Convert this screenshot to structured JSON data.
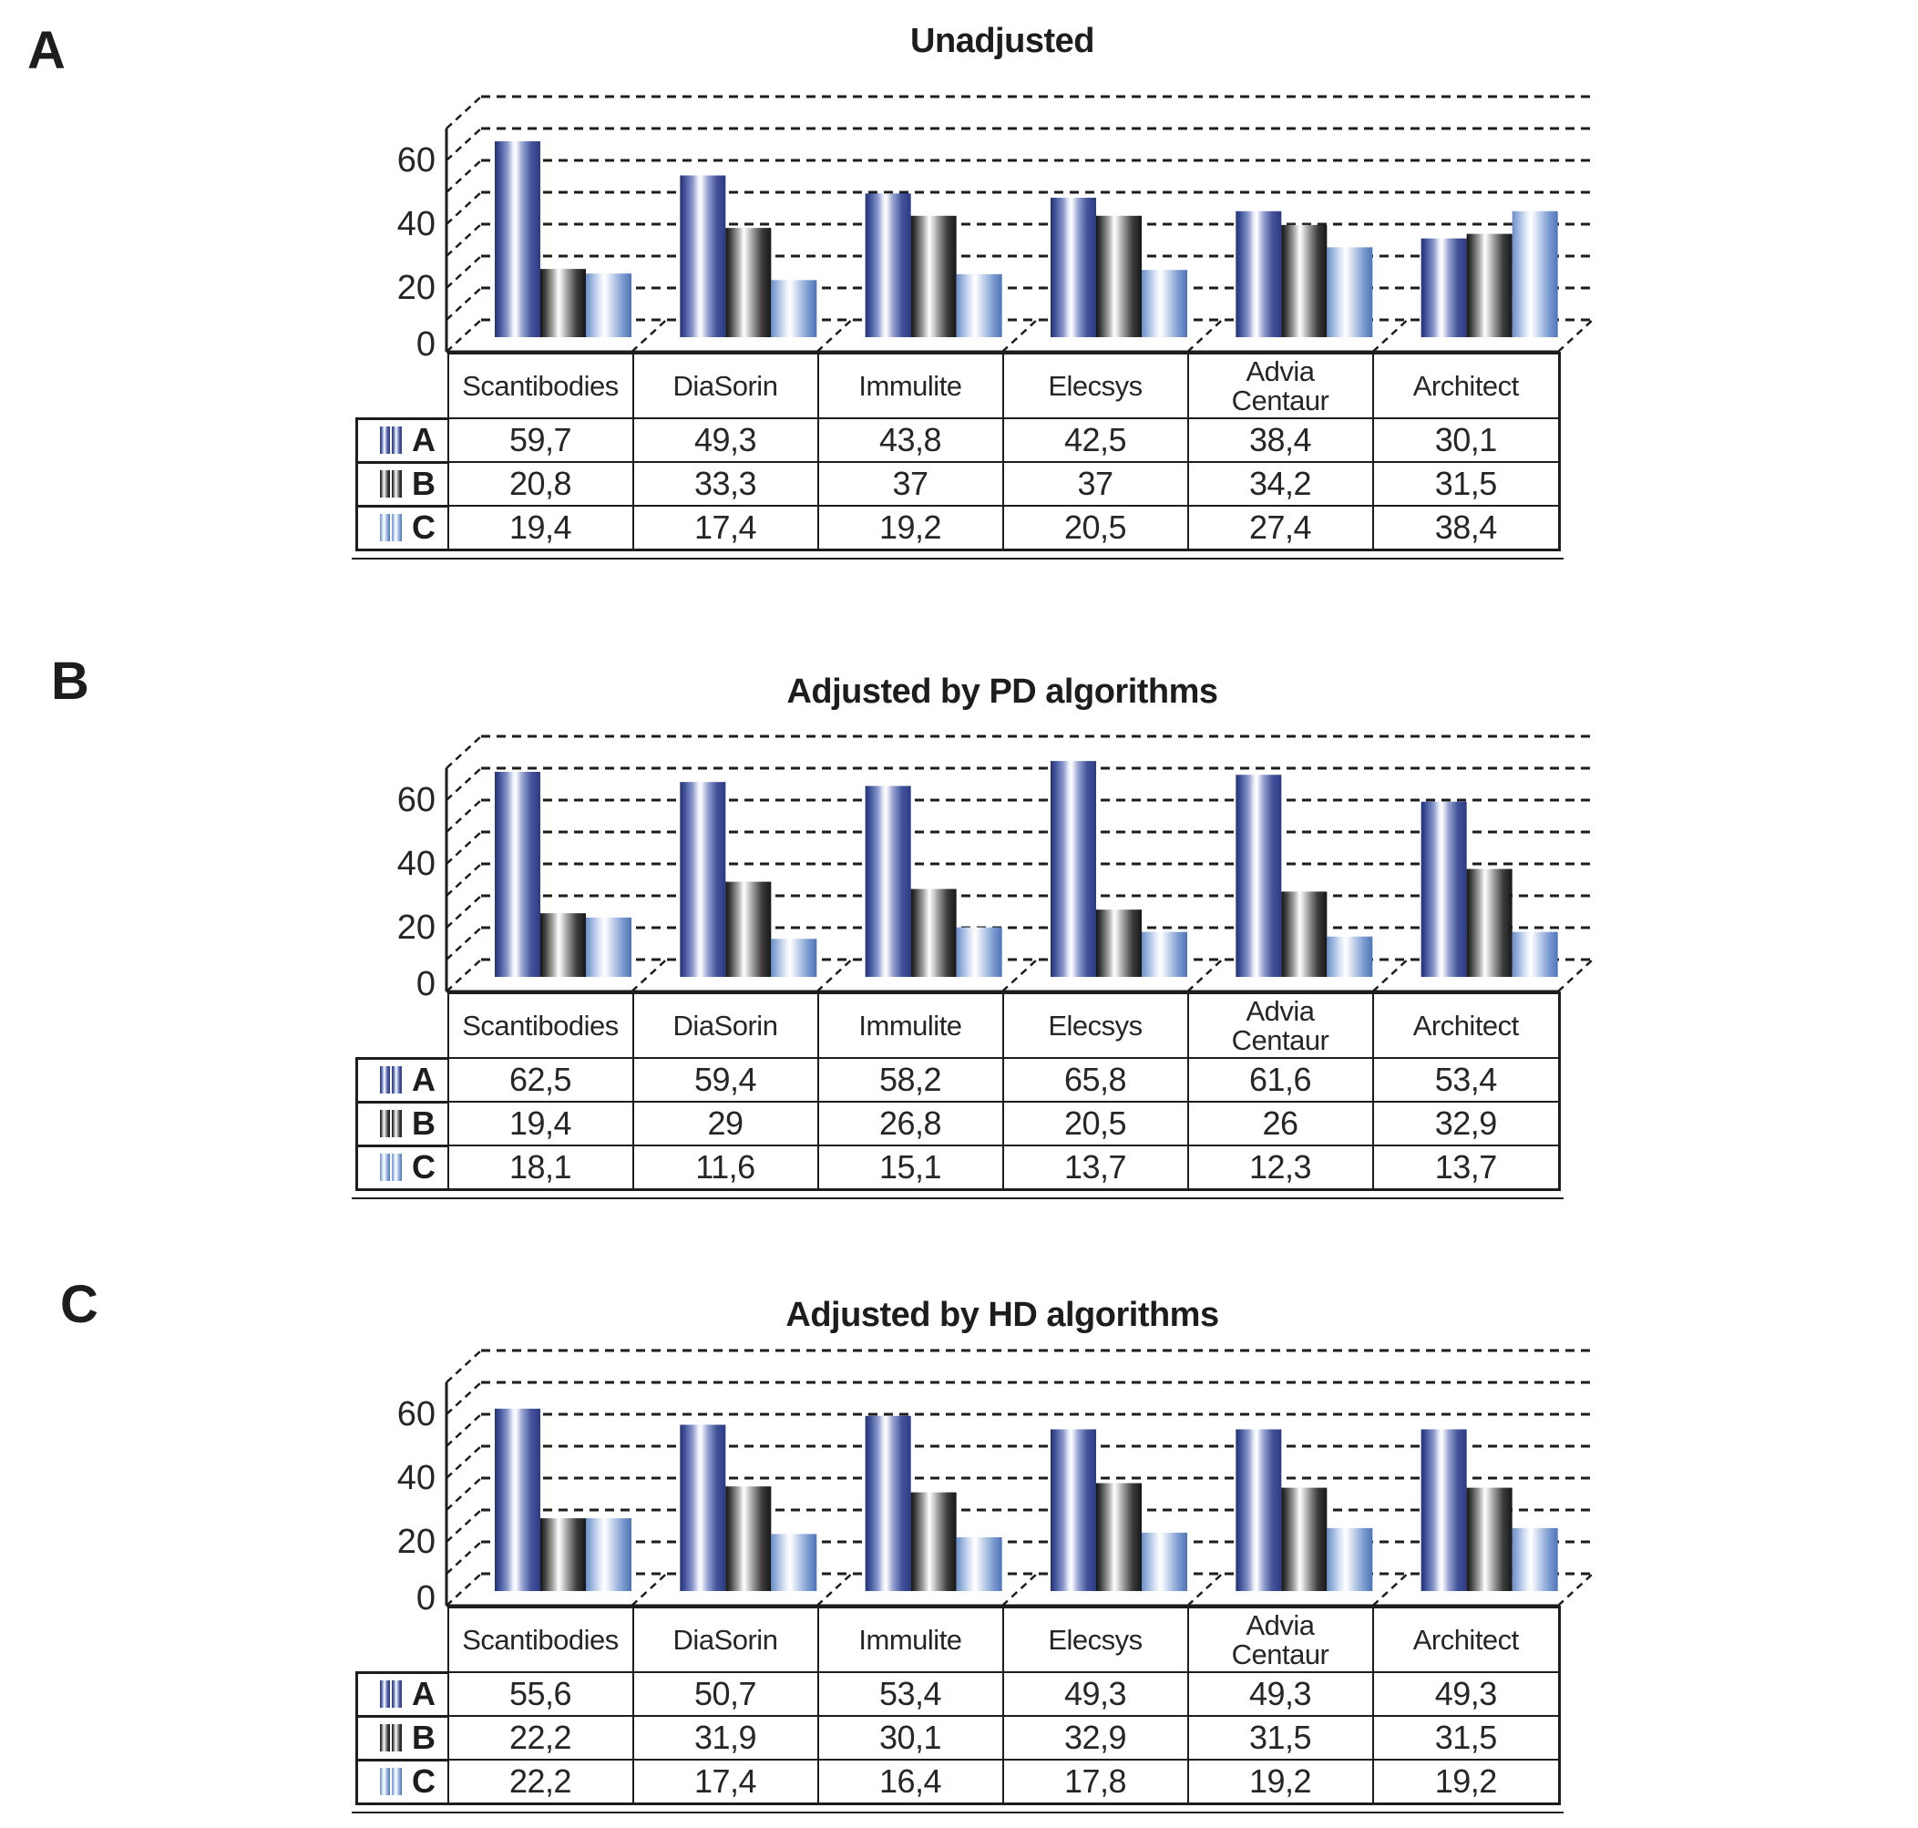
{
  "figure": {
    "background": "#ffffff",
    "line_color": "#1d1d1d",
    "text_color": "#262626"
  },
  "y_axis": {
    "tick_labels": [
      "0",
      "20",
      "40",
      "60"
    ],
    "tick_values": [
      0,
      20,
      40,
      60
    ],
    "max_grid_value": 70,
    "grid_interval": 10
  },
  "series_styles": [
    {
      "key": "A",
      "name": "A",
      "gradient": [
        "#233170",
        "#3f5199",
        "#8b99cc",
        "#eceffa",
        "#ffffff",
        "#9aa6d4",
        "#44549b",
        "#2b3a84"
      ]
    },
    {
      "key": "B",
      "name": "B",
      "gradient": [
        "#131313",
        "#3f3f3f",
        "#a8a8a8",
        "#ffffff",
        "#e5e5e5",
        "#9c9c9c",
        "#3c3c3c",
        "#171717"
      ]
    },
    {
      "key": "C",
      "name": "C",
      "gradient": [
        "#6a8fca",
        "#8fabd9",
        "#d6e1f3",
        "#ffffff",
        "#f2f5fb",
        "#c0d0ea",
        "#7e9ed2",
        "#4e74b7"
      ]
    }
  ],
  "panels": [
    {
      "label": "A",
      "title": "Unadjusted",
      "table": {
        "columns": [
          "Scantibodies",
          "DiaSorin",
          "Immulite",
          "Elecsys",
          "Advia Centaur",
          "Architect"
        ],
        "legend": [
          "A",
          "B",
          "C"
        ],
        "rows": [
          [
            "59,7",
            "49,3",
            "43,8",
            "42,5",
            "38,4",
            "30,1"
          ],
          [
            "20,8",
            "33,3",
            "37",
            "37",
            "34,2",
            "31,5"
          ],
          [
            "19,4",
            "17,4",
            "19,2",
            "20,5",
            "27,4",
            "38,4"
          ]
        ]
      }
    },
    {
      "label": "B",
      "title": "Adjusted by PD algorithms",
      "table": {
        "columns": [
          "Scantibodies",
          "DiaSorin",
          "Immulite",
          "Elecsys",
          "Advia Centaur",
          "Architect"
        ],
        "legend": [
          "A",
          "B",
          "C"
        ],
        "rows": [
          [
            "62,5",
            "59,4",
            "58,2",
            "65,8",
            "61,6",
            "53,4"
          ],
          [
            "19,4",
            "29",
            "26,8",
            "20,5",
            "26",
            "32,9"
          ],
          [
            "18,1",
            "11,6",
            "15,1",
            "13,7",
            "12,3",
            "13,7"
          ]
        ]
      }
    },
    {
      "label": "C",
      "title": "Adjusted by HD algorithms",
      "table": {
        "columns": [
          "Scantibodies",
          "DiaSorin",
          "Immulite",
          "Elecsys",
          "Advia Centaur",
          "Architect"
        ],
        "legend": [
          "A",
          "B",
          "C"
        ],
        "rows": [
          [
            "55,6",
            "50,7",
            "53,4",
            "49,3",
            "49,3",
            "49,3"
          ],
          [
            "22,2",
            "31,9",
            "30,1",
            "32,9",
            "31,5",
            "31,5"
          ],
          [
            "22,2",
            "17,4",
            "16,4",
            "17,8",
            "19,2",
            "19,2"
          ]
        ]
      }
    }
  ],
  "chart_data": [
    {
      "type": "bar",
      "variant": "3d-cylinder",
      "title": "Unadjusted",
      "categories": [
        "Scantibodies",
        "DiaSorin",
        "Immulite",
        "Elecsys",
        "Advia Centaur",
        "Architect"
      ],
      "series": [
        {
          "name": "A",
          "values": [
            59.7,
            49.3,
            43.8,
            42.5,
            38.4,
            30.1
          ]
        },
        {
          "name": "B",
          "values": [
            20.8,
            33.3,
            37,
            37,
            34.2,
            31.5
          ]
        },
        {
          "name": "C",
          "values": [
            19.4,
            17.4,
            19.2,
            20.5,
            27.4,
            38.4
          ]
        }
      ],
      "ylim": [
        0,
        70
      ],
      "yticks": [
        0,
        20,
        40,
        60
      ],
      "grid": true,
      "legend_position": "table-left"
    },
    {
      "type": "bar",
      "variant": "3d-cylinder",
      "title": "Adjusted by PD algorithms",
      "categories": [
        "Scantibodies",
        "DiaSorin",
        "Immulite",
        "Elecsys",
        "Advia Centaur",
        "Architect"
      ],
      "series": [
        {
          "name": "A",
          "values": [
            62.5,
            59.4,
            58.2,
            65.8,
            61.6,
            53.4
          ]
        },
        {
          "name": "B",
          "values": [
            19.4,
            29,
            26.8,
            20.5,
            26,
            32.9
          ]
        },
        {
          "name": "C",
          "values": [
            18.1,
            11.6,
            15.1,
            13.7,
            12.3,
            13.7
          ]
        }
      ],
      "ylim": [
        0,
        70
      ],
      "yticks": [
        0,
        20,
        40,
        60
      ],
      "grid": true,
      "legend_position": "table-left"
    },
    {
      "type": "bar",
      "variant": "3d-cylinder",
      "title": "Adjusted by HD algorithms",
      "categories": [
        "Scantibodies",
        "DiaSorin",
        "Immulite",
        "Elecsys",
        "Advia Centaur",
        "Architect"
      ],
      "series": [
        {
          "name": "A",
          "values": [
            55.6,
            50.7,
            53.4,
            49.3,
            49.3,
            49.3
          ]
        },
        {
          "name": "B",
          "values": [
            22.2,
            31.9,
            30.1,
            32.9,
            31.5,
            31.5
          ]
        },
        {
          "name": "C",
          "values": [
            22.2,
            17.4,
            16.4,
            17.8,
            19.2,
            19.2
          ]
        }
      ],
      "ylim": [
        0,
        70
      ],
      "yticks": [
        0,
        20,
        40,
        60
      ],
      "grid": true,
      "legend_position": "table-left"
    }
  ]
}
